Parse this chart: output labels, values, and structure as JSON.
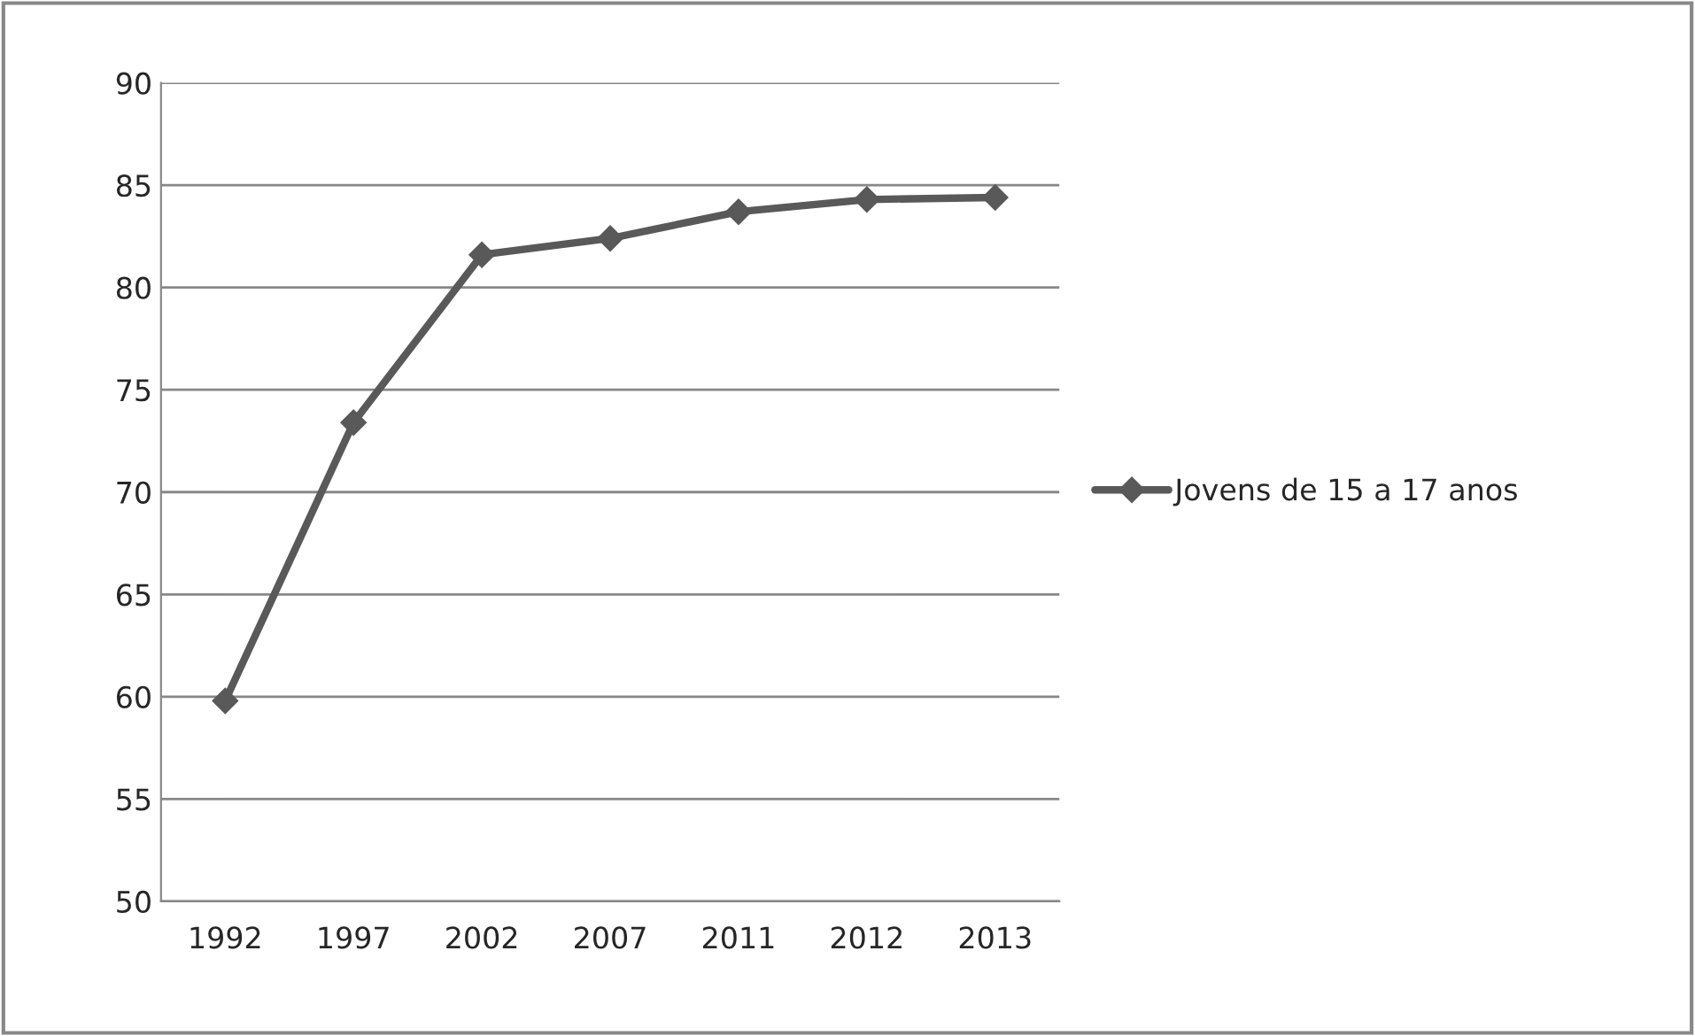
{
  "chart_data": {
    "type": "line",
    "categories": [
      "1992",
      "1997",
      "2002",
      "2007",
      "2011",
      "2012",
      "2013"
    ],
    "series": [
      {
        "name": "Jovens de 15 a 17 anos",
        "color": "#595959",
        "values": [
          59.8,
          73.4,
          81.6,
          82.4,
          83.7,
          84.3,
          84.4
        ]
      }
    ],
    "ylim": [
      50,
      90
    ],
    "yticks": [
      50,
      55,
      60,
      65,
      70,
      75,
      80,
      85,
      90
    ],
    "grid": "y",
    "legend": "right",
    "marker": "diamond",
    "line_style": "solid"
  }
}
